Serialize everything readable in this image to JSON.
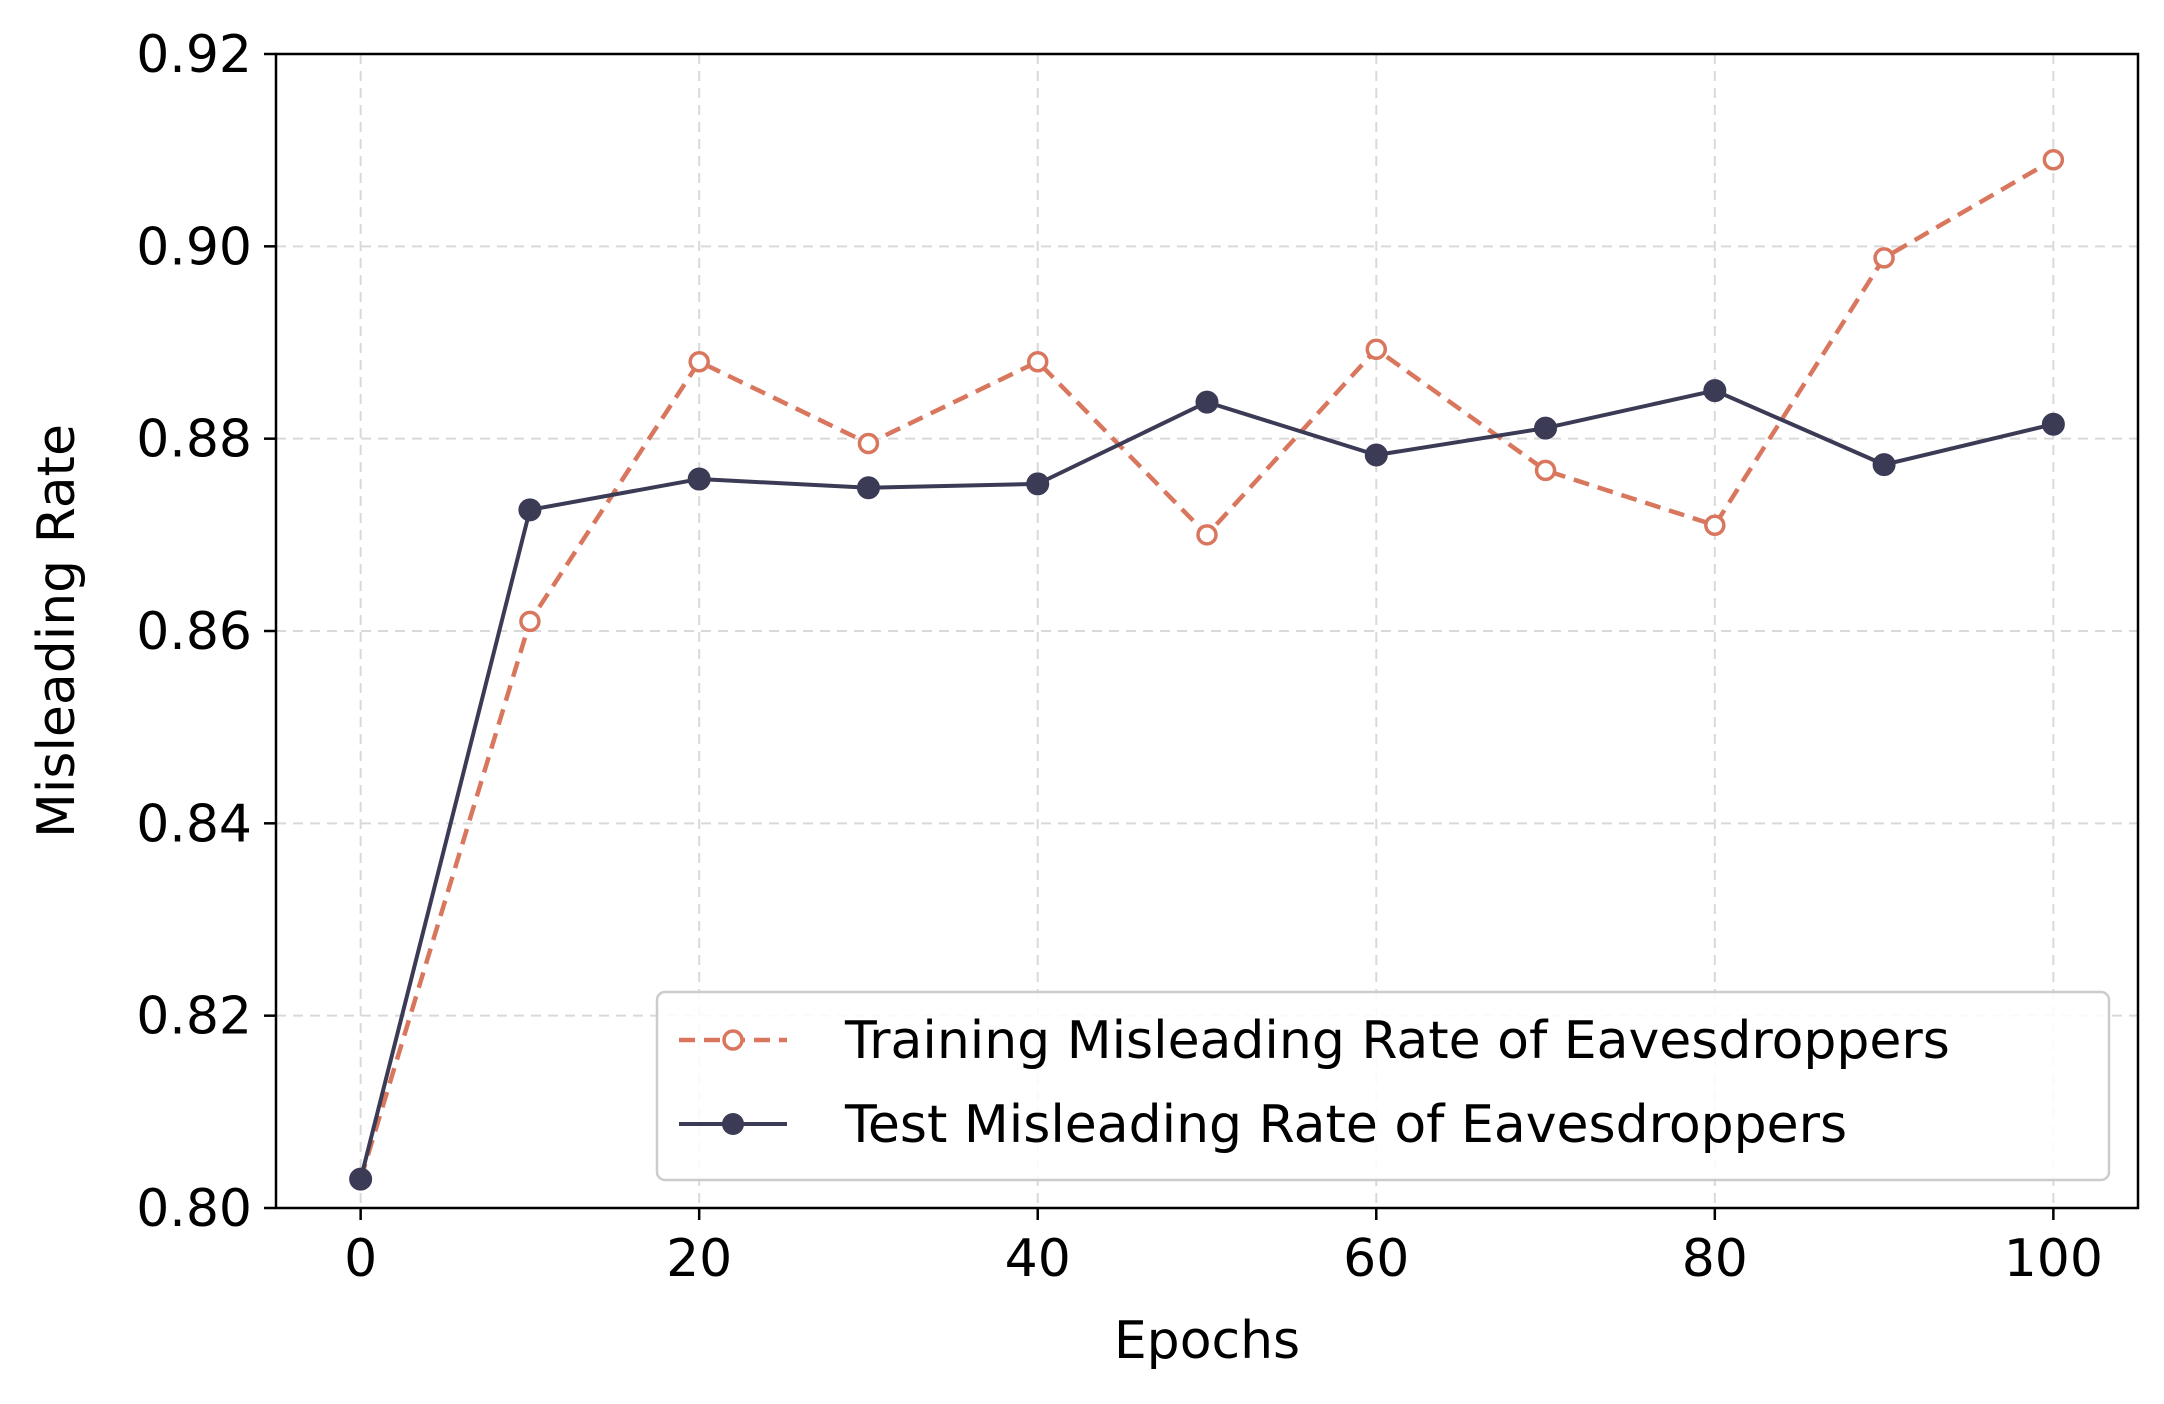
{
  "chart_data": {
    "type": "line",
    "title": "",
    "xlabel": "Epochs",
    "ylabel": "Misleading Rate",
    "xlim": [
      -5,
      105
    ],
    "ylim": [
      0.8,
      0.92
    ],
    "xticks": [
      0,
      20,
      40,
      60,
      80,
      100
    ],
    "xtick_labels": [
      "0",
      "20",
      "40",
      "60",
      "80",
      "100"
    ],
    "yticks": [
      0.8,
      0.82,
      0.84,
      0.86,
      0.88,
      0.9,
      0.92
    ],
    "ytick_labels": [
      "0.80",
      "0.82",
      "0.84",
      "0.86",
      "0.88",
      "0.90",
      "0.92"
    ],
    "grid": true,
    "legend_position": "bottom-right",
    "x": [
      0,
      10,
      20,
      30,
      40,
      50,
      60,
      70,
      80,
      90,
      100
    ],
    "series": [
      {
        "name": "Training Misleading Rate of Eavesdroppers",
        "color": "#D9775E",
        "line_style": "dashed",
        "marker": "open-circle",
        "values": [
          0.803,
          0.861,
          0.888,
          0.8795,
          0.888,
          0.87,
          0.8893,
          0.8767,
          0.871,
          0.8988,
          0.909
        ]
      },
      {
        "name": "Test Misleading Rate of Eavesdroppers",
        "color": "#3B3B56",
        "line_style": "solid",
        "marker": "filled-circle",
        "values": [
          0.803,
          0.8726,
          0.8758,
          0.8749,
          0.8753,
          0.8838,
          0.8783,
          0.8811,
          0.885,
          0.8773,
          0.8815
        ]
      }
    ]
  }
}
